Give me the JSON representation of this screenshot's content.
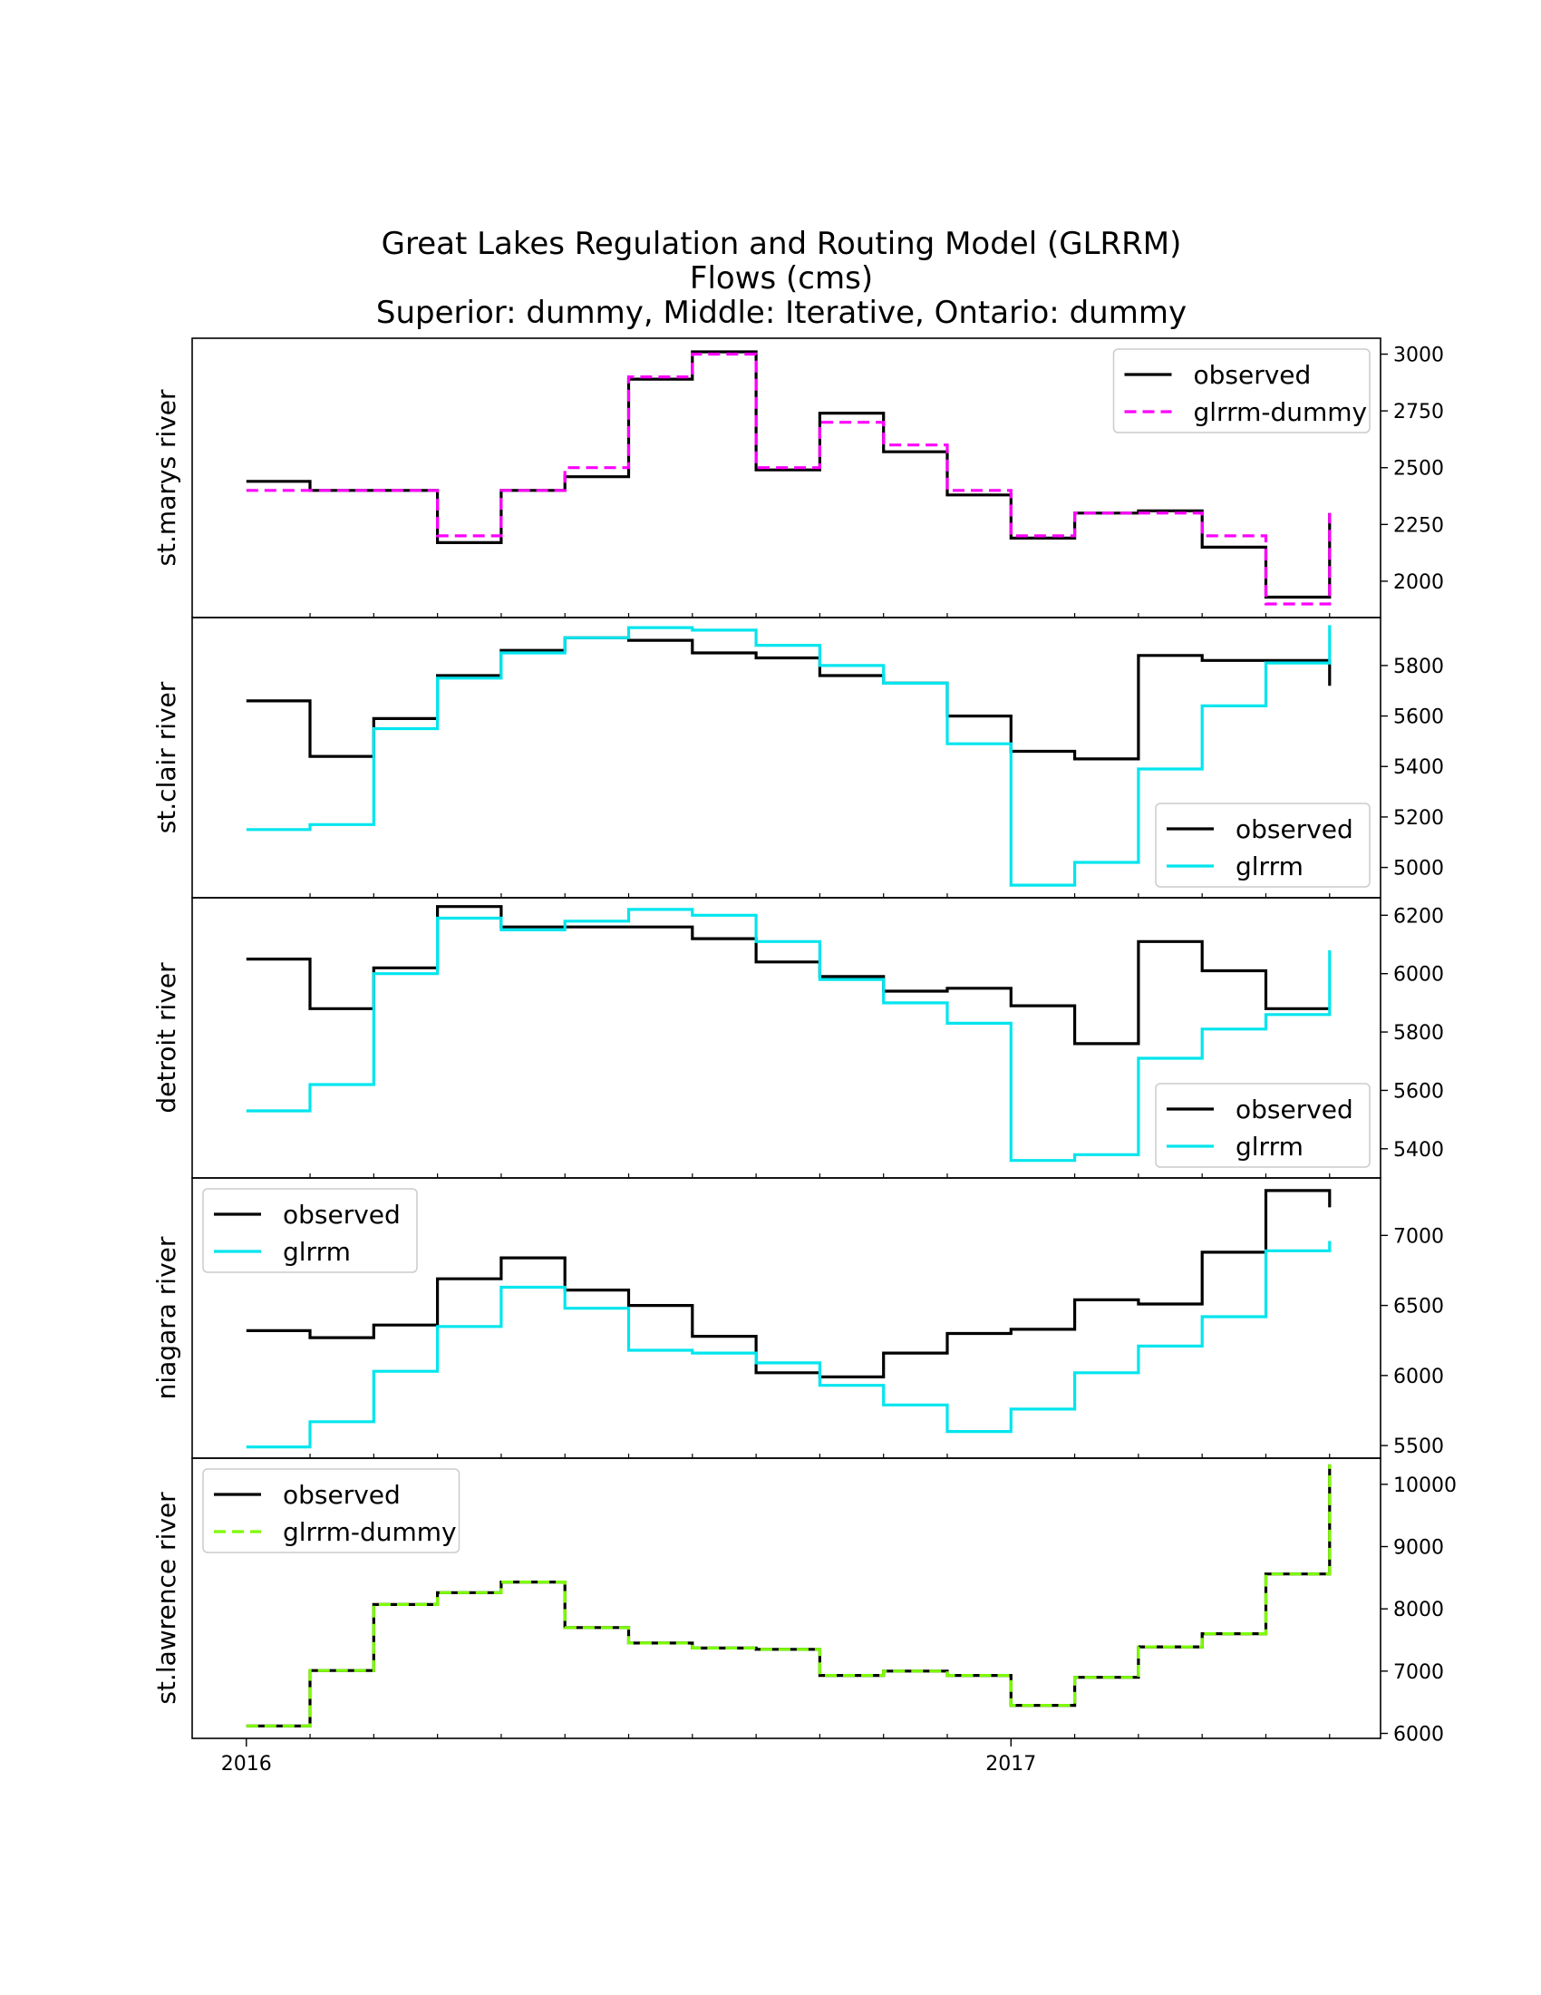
{
  "colors": {
    "observed": "#000000",
    "magenta": "#ff00ff",
    "cyan": "#00e5ee",
    "green": "#7cfc00"
  },
  "chart_data": {
    "type": "line",
    "style": "step",
    "title": [
      "Great Lakes Regulation and Routing Model (GLRRM)",
      "Flows (cms)",
      "Superior: dummy, Middle: Iterative, Ontario: dummy"
    ],
    "x_tick_labels": [
      "2016",
      "2017"
    ],
    "x_tick_positions": [
      0,
      12
    ],
    "x": [
      0,
      1,
      2,
      3,
      4,
      5,
      6,
      7,
      8,
      9,
      10,
      11,
      12,
      13,
      14,
      15,
      16,
      17
    ],
    "x_note": "month index starting Jan 2016; step plot, value held until next month",
    "xlim": [
      -0.85,
      17.8
    ],
    "panels": [
      {
        "ylabel": "st.marys river",
        "ylim": [
          1840,
          3070
        ],
        "yticks": [
          2000,
          2250,
          2500,
          2750,
          3000
        ],
        "legend_position": "upper right",
        "series": [
          {
            "name": "observed",
            "color": "#000000",
            "dash": "solid",
            "values": [
              2440,
              2400,
              2400,
              2170,
              2400,
              2460,
              2890,
              3010,
              2490,
              2740,
              2570,
              2380,
              2190,
              2300,
              2310,
              2150,
              1930,
              2300
            ]
          },
          {
            "name": "glrrm-dummy",
            "color": "#ff00ff",
            "dash": "dashed",
            "values": [
              2400,
              2400,
              2400,
              2200,
              2400,
              2500,
              2900,
              3000,
              2500,
              2700,
              2600,
              2400,
              2200,
              2300,
              2300,
              2200,
              1900,
              2300
            ]
          }
        ]
      },
      {
        "ylabel": "st.clair river",
        "ylim": [
          4880,
          5990
        ],
        "yticks": [
          5000,
          5200,
          5400,
          5600,
          5800
        ],
        "legend_position": "lower right",
        "series": [
          {
            "name": "observed",
            "color": "#000000",
            "dash": "solid",
            "values": [
              5660,
              5440,
              5590,
              5760,
              5860,
              5910,
              5900,
              5850,
              5830,
              5760,
              5730,
              5600,
              5460,
              5430,
              5840,
              5820,
              5820,
              5720
            ]
          },
          {
            "name": "glrrm",
            "color": "#00e5ee",
            "dash": "solid",
            "values": [
              5150,
              5170,
              5550,
              5750,
              5850,
              5910,
              5950,
              5940,
              5880,
              5800,
              5730,
              5490,
              4930,
              5020,
              5390,
              5640,
              5810,
              5960
            ]
          }
        ]
      },
      {
        "ylabel": "detroit river",
        "ylim": [
          5300,
          6260
        ],
        "yticks": [
          5400,
          5600,
          5800,
          6000,
          6200
        ],
        "legend_position": "lower right",
        "series": [
          {
            "name": "observed",
            "color": "#000000",
            "dash": "solid",
            "values": [
              6050,
              5880,
              6020,
              6230,
              6160,
              6160,
              6160,
              6120,
              6040,
              5990,
              5940,
              5950,
              5890,
              5760,
              6110,
              6010,
              5880,
              5880
            ]
          },
          {
            "name": "glrrm",
            "color": "#00e5ee",
            "dash": "solid",
            "values": [
              5530,
              5620,
              6000,
              6190,
              6150,
              6180,
              6220,
              6200,
              6110,
              5980,
              5900,
              5830,
              5360,
              5380,
              5710,
              5810,
              5860,
              6080
            ]
          }
        ]
      },
      {
        "ylabel": "niagara river",
        "ylim": [
          5410,
          7410
        ],
        "yticks": [
          5500,
          6000,
          6500,
          7000
        ],
        "legend_position": "upper left",
        "series": [
          {
            "name": "observed",
            "color": "#000000",
            "dash": "solid",
            "values": [
              6320,
              6270,
              6360,
              6690,
              6840,
              6610,
              6500,
              6280,
              6020,
              5990,
              6160,
              6300,
              6330,
              6540,
              6510,
              6880,
              7320,
              7200
            ]
          },
          {
            "name": "glrrm",
            "color": "#00e5ee",
            "dash": "solid",
            "values": [
              5490,
              5670,
              6030,
              6350,
              6630,
              6480,
              6180,
              6160,
              6090,
              5930,
              5790,
              5600,
              5760,
              6020,
              6210,
              6420,
              6890,
              6960
            ]
          }
        ]
      },
      {
        "ylabel": "st.lawrence river",
        "ylim": [
          5920,
          10420
        ],
        "yticks": [
          6000,
          7000,
          8000,
          9000,
          10000
        ],
        "legend_position": "upper left",
        "series": [
          {
            "name": "observed",
            "color": "#000000",
            "dash": "solid",
            "values": [
              6120,
              7010,
              8070,
              8260,
              8430,
              7700,
              7450,
              7370,
              7350,
              6930,
              7000,
              6930,
              6450,
              6900,
              7390,
              7600,
              8560,
              10320
            ]
          },
          {
            "name": "glrrm-dummy",
            "color": "#7cfc00",
            "dash": "dashed",
            "values": [
              6120,
              7010,
              8070,
              8260,
              8430,
              7700,
              7450,
              7370,
              7350,
              6930,
              7000,
              6930,
              6450,
              6900,
              7390,
              7600,
              8560,
              10320
            ]
          }
        ]
      }
    ]
  }
}
